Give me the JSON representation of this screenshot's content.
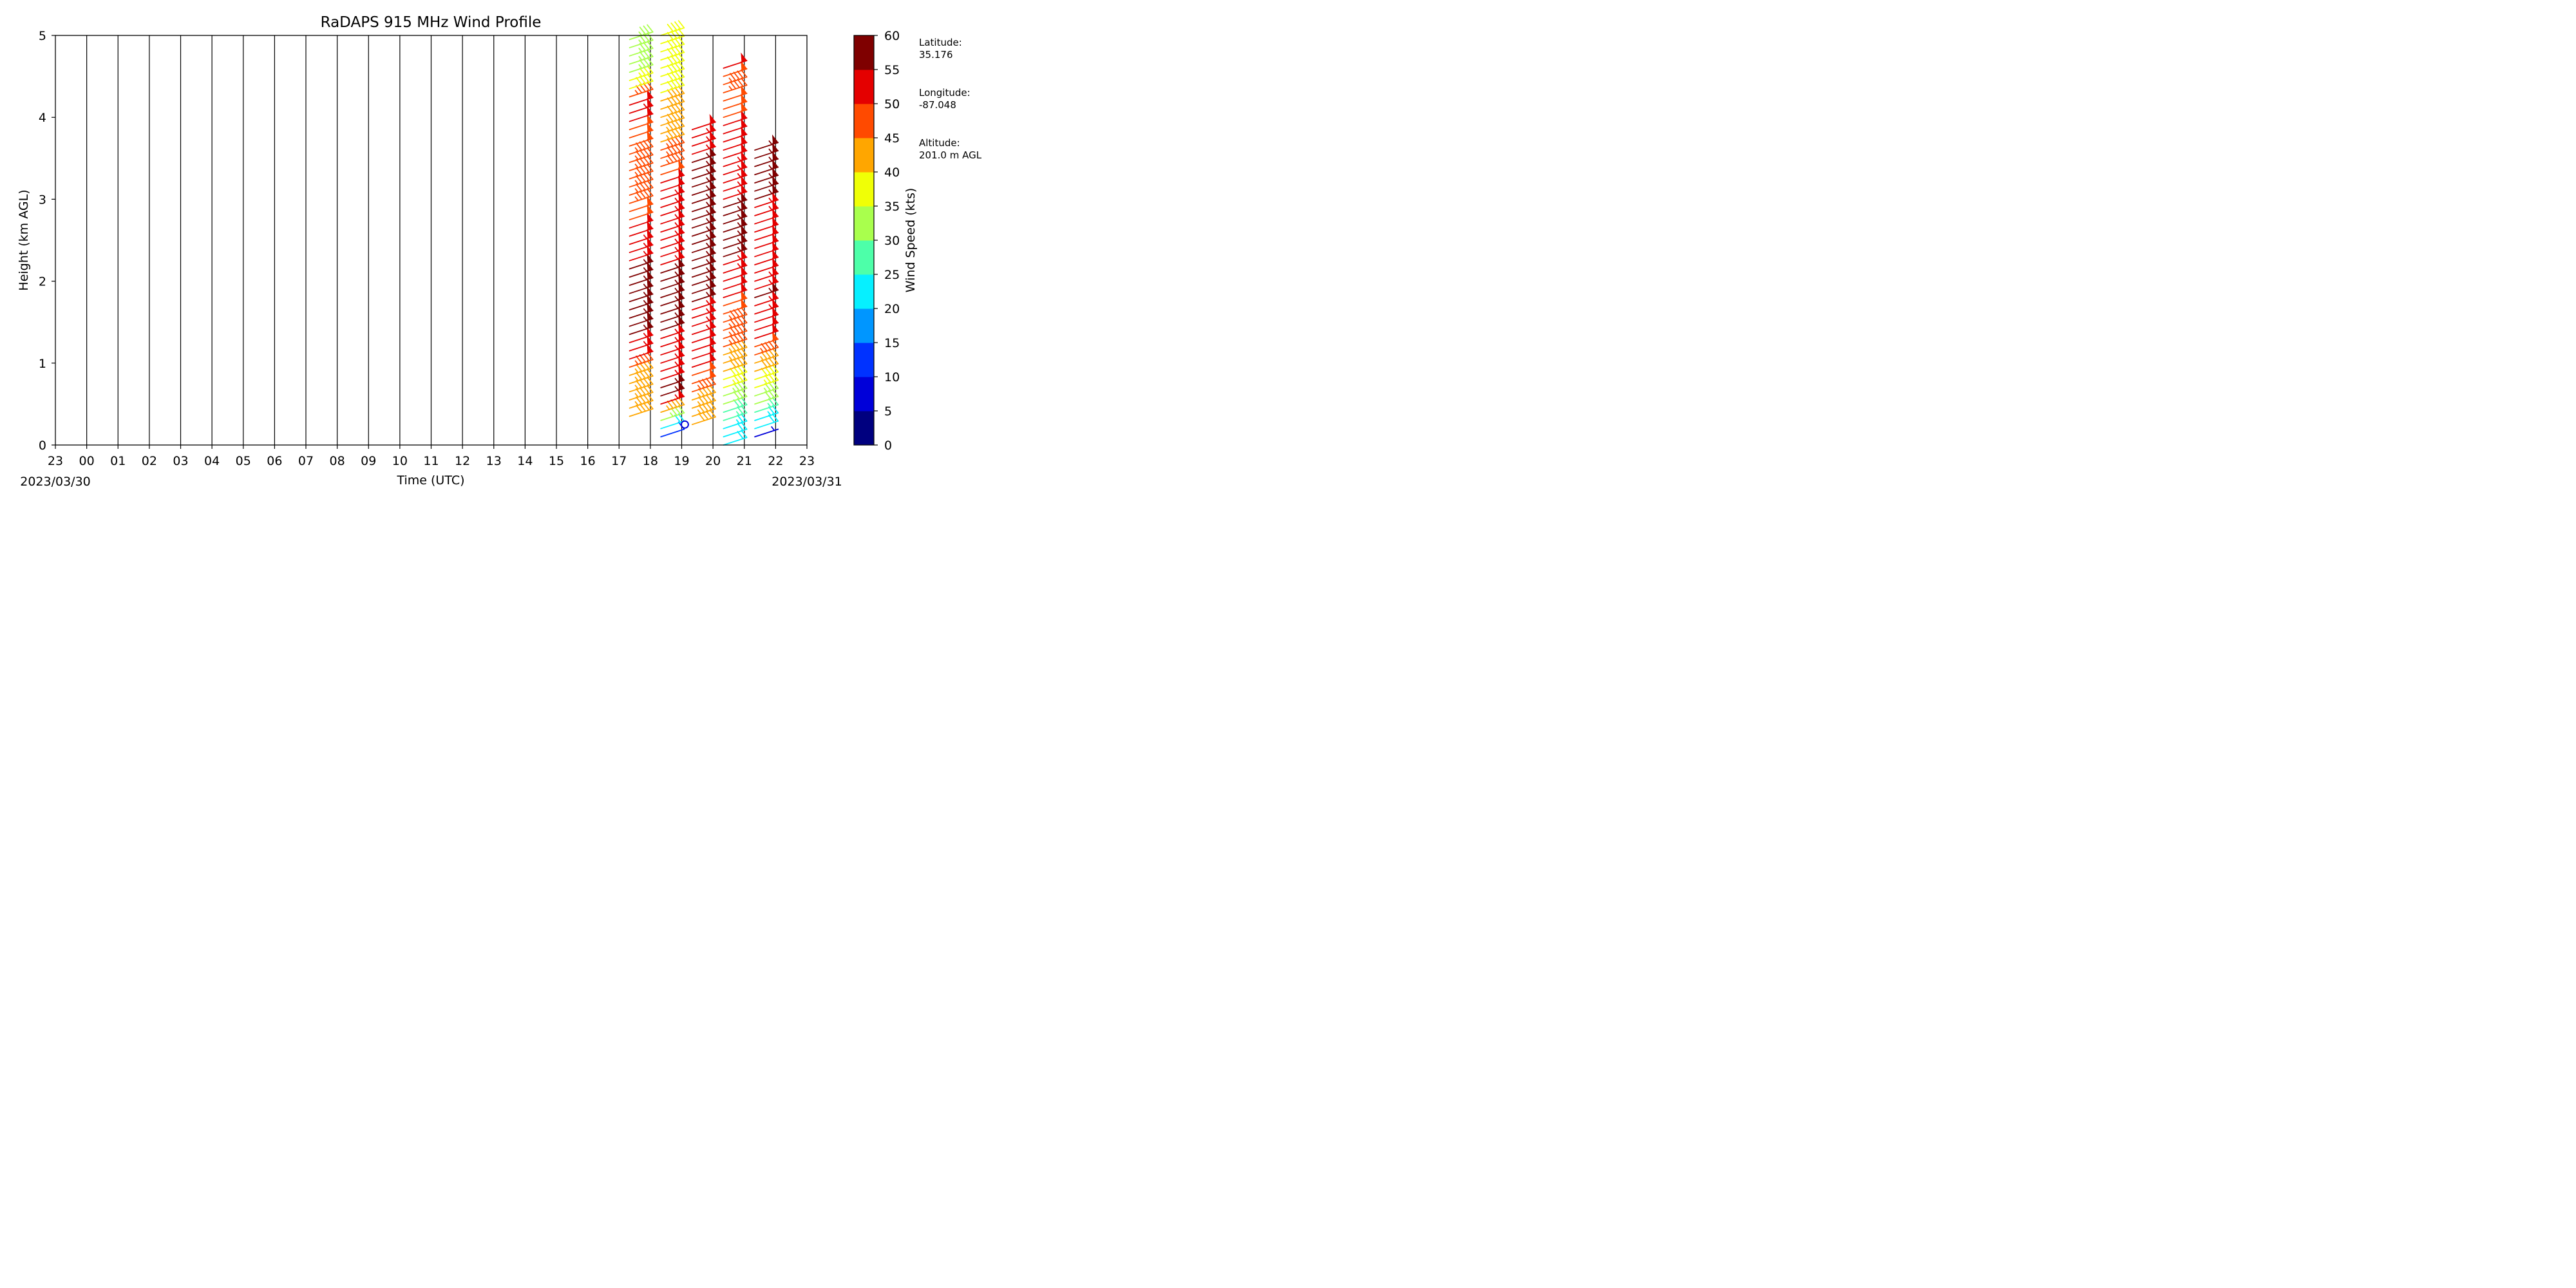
{
  "chart_data": {
    "type": "wind-barb-profile",
    "title": "RaDAPS 915 MHz Wind Profile",
    "xlabel": "Time (UTC)",
    "ylabel": "Height (km AGL)",
    "xlim_hours": [
      -1,
      23
    ],
    "ylim": [
      0,
      5
    ],
    "x_tick_labels": [
      "23",
      "00",
      "01",
      "02",
      "03",
      "04",
      "05",
      "06",
      "07",
      "08",
      "09",
      "10",
      "11",
      "12",
      "13",
      "14",
      "15",
      "16",
      "17",
      "18",
      "19",
      "20",
      "21",
      "22",
      "23"
    ],
    "y_ticks": [
      0,
      1,
      2,
      3,
      4,
      5
    ],
    "start_date_label": "2023/03/30",
    "end_date_label": "2023/03/31",
    "grid": "vertical lines at each hour",
    "colorbar": {
      "label": "Wind Speed (kts)",
      "ticks": [
        0,
        5,
        10,
        15,
        20,
        25,
        30,
        35,
        40,
        45,
        50,
        55,
        60
      ],
      "colors": [
        "#00007f",
        "#0000d9",
        "#0032ff",
        "#0096ff",
        "#06f0ff",
        "#4dffa9",
        "#a9ff4d",
        "#f0ff06",
        "#ffa600",
        "#ff4a00",
        "#e40000",
        "#7f0000"
      ]
    },
    "profiles": [
      {
        "hour": 17.5,
        "h_from": 0.35,
        "h_to": 5.0,
        "speed_by_height": [
          [
            0.35,
            42
          ],
          [
            0.9,
            45
          ],
          [
            1.05,
            52
          ],
          [
            1.5,
            57
          ],
          [
            2.0,
            57
          ],
          [
            2.5,
            53
          ],
          [
            3.0,
            46
          ],
          [
            3.8,
            48
          ],
          [
            4.1,
            56
          ],
          [
            4.3,
            42
          ],
          [
            4.5,
            34
          ],
          [
            5.0,
            33
          ]
        ]
      },
      {
        "hour": 18.5,
        "h_from": 0.1,
        "h_to": 5.0,
        "speed_by_height": [
          [
            0.1,
            10
          ],
          [
            0.35,
            40
          ],
          [
            0.55,
            57
          ],
          [
            1.0,
            53
          ],
          [
            1.5,
            56
          ],
          [
            2.0,
            56
          ],
          [
            2.5,
            53
          ],
          [
            3.0,
            53
          ],
          [
            3.5,
            46
          ],
          [
            4.0,
            42
          ],
          [
            4.5,
            38
          ],
          [
            5.0,
            40
          ]
        ]
      },
      {
        "hour": 19.5,
        "h_from": 0.25,
        "h_to": 3.85,
        "speed_by_height": [
          [
            0.25,
            42
          ],
          [
            0.6,
            44
          ],
          [
            0.9,
            51
          ],
          [
            1.5,
            53
          ],
          [
            2.0,
            57
          ],
          [
            2.5,
            55
          ],
          [
            3.0,
            56
          ],
          [
            3.5,
            55
          ],
          [
            3.85,
            52
          ]
        ]
      },
      {
        "hour": 20.5,
        "h_from": 0.0,
        "h_to": 4.6,
        "speed_by_height": [
          [
            0.0,
            20
          ],
          [
            0.3,
            27
          ],
          [
            0.6,
            33
          ],
          [
            0.9,
            42
          ],
          [
            1.2,
            46
          ],
          [
            1.5,
            47
          ],
          [
            2.0,
            52
          ],
          [
            2.5,
            57
          ],
          [
            3.0,
            55
          ],
          [
            3.5,
            52
          ],
          [
            4.0,
            50
          ],
          [
            4.35,
            46
          ],
          [
            4.6,
            52
          ]
        ]
      },
      {
        "hour": 21.5,
        "h_from": 0.1,
        "h_to": 3.6,
        "speed_by_height": [
          [
            0.1,
            5
          ],
          [
            0.2,
            22
          ],
          [
            0.5,
            30
          ],
          [
            0.8,
            38
          ],
          [
            1.0,
            44
          ],
          [
            1.3,
            50
          ],
          [
            1.8,
            56
          ],
          [
            2.2,
            50
          ],
          [
            2.5,
            50
          ],
          [
            3.0,
            56
          ],
          [
            3.5,
            55
          ],
          [
            3.6,
            57
          ]
        ]
      }
    ],
    "calm_marker": {
      "hour": 19.1,
      "height": 0.25
    }
  },
  "site_info": {
    "latitude_label": "Latitude:",
    "latitude": "35.176",
    "longitude_label": "Longitude:",
    "longitude": "-87.048",
    "altitude_label": "Altitude:",
    "altitude": "201.0 m AGL"
  }
}
